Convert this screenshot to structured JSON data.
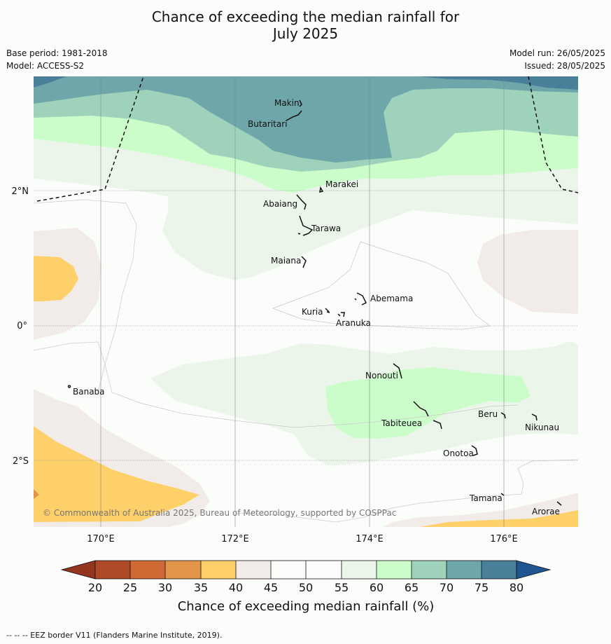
{
  "title_line1": "Chance of exceeding the median rainfall for",
  "title_line2": "July 2025",
  "base_period": "Base period: 1981-2018",
  "model": "Model: ACCESS-S2",
  "model_run": "Model run: 26/05/2025",
  "issued": "Issued: 28/05/2025",
  "map": {
    "lon_ticks": [
      "170°E",
      "172°E",
      "174°E",
      "176°E"
    ],
    "lat_ticks": [
      "2°N",
      "0°",
      "2°S"
    ],
    "places": [
      "Makin",
      "Butaritari",
      "Marakei",
      "Abaiang",
      "Tarawa",
      "Maiana",
      "Abemama",
      "Kuria",
      "Aranuka",
      "Nonouti",
      "Banaba",
      "Tabiteuea",
      "Beru",
      "Nikunau",
      "Onotoa",
      "Tamana",
      "Arorae"
    ],
    "copyright": "© Commonwealth of Australia 2025, Bureau of Meteorology, supported by COSPPac",
    "colors": {
      "c20_25": "#b14a28",
      "c25_30": "#cf6a34",
      "c30_35": "#e29548",
      "c35_40": "#fdd069",
      "c40_45": "#f2ece8",
      "c45_55": "#fbfdfb",
      "c55_60": "#ebf5ea",
      "c60_65": "#cbfdcb",
      "c65_70": "#9fd2bb",
      "c70_75": "#6fa6aa",
      "c75_80": "#4a7f9a",
      "c80p": "#1f5591",
      "clt20": "#943520"
    }
  },
  "colorbar": {
    "ticks": [
      "20",
      "25",
      "30",
      "35",
      "40",
      "45",
      "50",
      "55",
      "60",
      "65",
      "70",
      "75",
      "80"
    ],
    "title": "Chance of exceeding median rainfall (%)"
  },
  "footer": "-- -- -- EEZ border V11 (Flanders Marine Institute, 2019)."
}
